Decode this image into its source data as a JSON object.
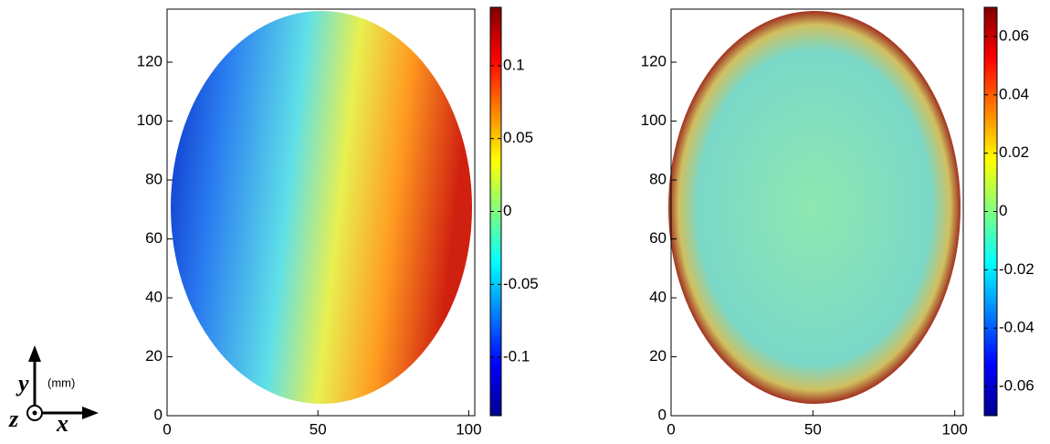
{
  "chart_data": [
    {
      "type": "heatmap",
      "colormap": "jet",
      "xlim": [
        0,
        102
      ],
      "ylim": [
        0,
        138
      ],
      "xticks": [
        0,
        50,
        100
      ],
      "yticks": [
        0,
        20,
        40,
        60,
        80,
        100,
        120
      ],
      "clim": [
        -0.14,
        0.14
      ],
      "cticks": [
        -0.1,
        -0.05,
        0,
        0.05,
        0.1
      ]
    },
    {
      "type": "heatmap",
      "colormap": "jet",
      "xlim": [
        0,
        103
      ],
      "ylim": [
        0,
        138
      ],
      "xticks": [
        0,
        50,
        100
      ],
      "yticks": [
        0,
        20,
        40,
        60,
        80,
        100,
        120
      ],
      "clim": [
        -0.07,
        0.07
      ],
      "cticks": [
        -0.06,
        -0.04,
        -0.02,
        0,
        0.02,
        0.04,
        0.06
      ]
    }
  ],
  "axes_indicator": {
    "x": "x",
    "y": "y",
    "z": "z",
    "unit": "(mm)"
  }
}
